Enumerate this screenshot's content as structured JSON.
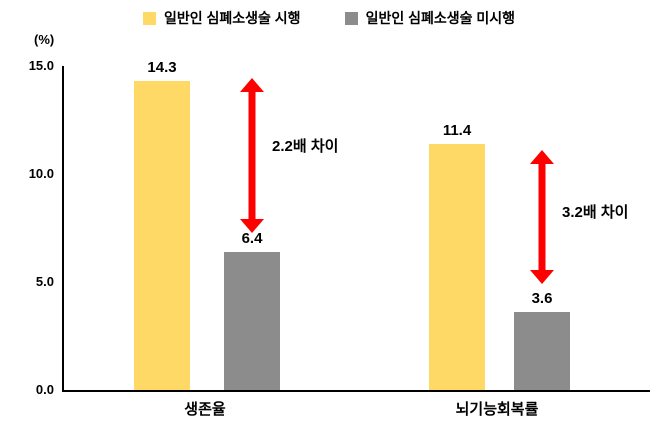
{
  "chart_data": {
    "type": "bar",
    "title": "",
    "unit_label": "(%)",
    "categories": [
      "생존율",
      "뇌기능회복률"
    ],
    "series": [
      {
        "name": "일반인 심폐소생술 시행",
        "color": "#FFD965",
        "values": [
          14.3,
          11.4
        ]
      },
      {
        "name": "일반인 심폐소생술 미시행",
        "color": "#8C8C8C",
        "values": [
          6.4,
          3.6
        ]
      }
    ],
    "ylim": [
      0,
      15
    ],
    "ytick_labels": [
      "15.0",
      "10.0",
      "5.0",
      "0.0"
    ],
    "grid": false,
    "legend_position": "top",
    "arrow_color": "#FF0000",
    "annotations": [
      {
        "text": "2.2배 차이",
        "between": "생존율 bars"
      },
      {
        "text": "3.2배 차이",
        "between": "뇌기능회복률 bars"
      }
    ],
    "icons": {
      "legend_swatch_performed": "yellow-square-icon",
      "legend_swatch_not_performed": "gray-square-icon",
      "difference_arrow": "red-double-arrow-icon"
    }
  }
}
